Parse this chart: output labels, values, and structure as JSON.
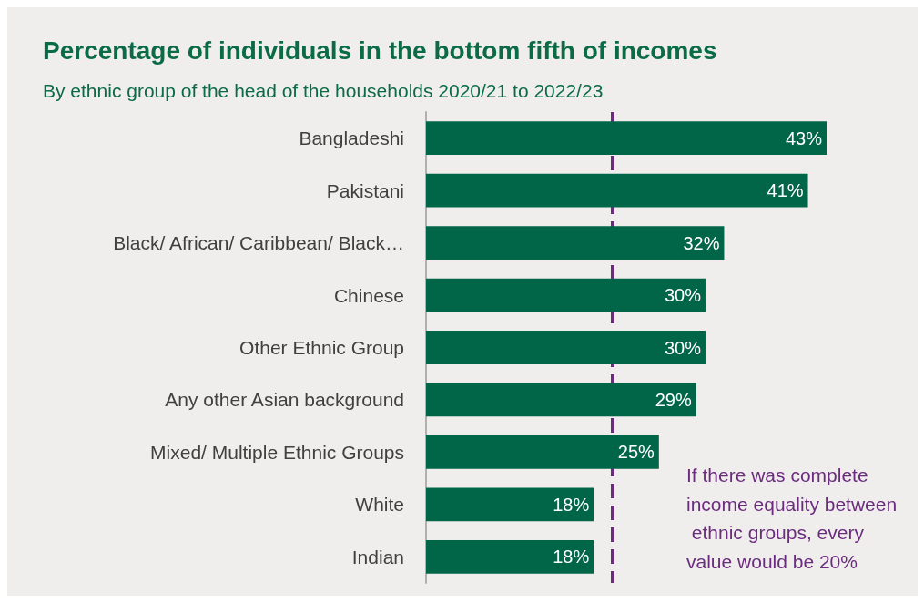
{
  "chart_data": {
    "type": "bar",
    "orientation": "horizontal",
    "title": "Percentage of individuals in the bottom fifth of incomes",
    "subtitle": "By ethnic group of the head of the households 2020/21 to 2022/23",
    "categories": [
      "Bangladeshi",
      "Pakistani",
      "Black/ African/ Caribbean/ Black…",
      "Chinese",
      "Other Ethnic Group",
      "Any other Asian background",
      "Mixed/ Multiple Ethnic Groups",
      "White",
      "Indian"
    ],
    "values": [
      43,
      41,
      32,
      30,
      30,
      29,
      25,
      18,
      18
    ],
    "value_labels": [
      "43%",
      "41%",
      "32%",
      "30%",
      "30%",
      "29%",
      "25%",
      "18%",
      "18%"
    ],
    "color": "#006647",
    "ref_lines": [
      {
        "axis": "x",
        "value": 20,
        "label": "If there was complete income equality between ethnic groups, every value would be 20%",
        "color": "#6b2c7e",
        "line_style": "dashed"
      }
    ]
  }
}
